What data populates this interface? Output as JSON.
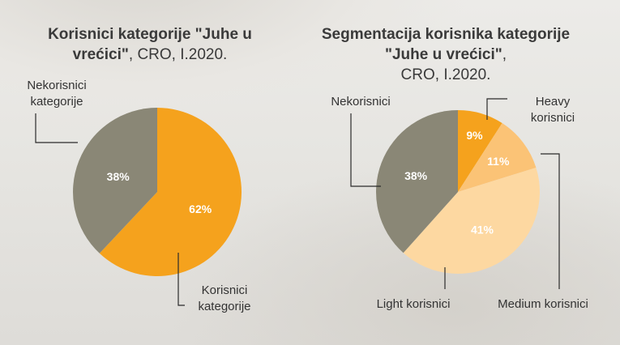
{
  "colors": {
    "nekorisnici": "#8a8776",
    "korisnici": "#f5a21d",
    "heavy": "#f5a21d",
    "medium": "#fbc376",
    "light": "#fdd8a1",
    "leader": "#2b2b2b"
  },
  "chart_data": [
    {
      "type": "pie",
      "title_bold": "Korisnici kategorije \"Juhe u vrećici\"",
      "title_rest": ", CRO, I.2020.",
      "slices": [
        {
          "name": "Korisnici kategorije",
          "label_line1": "Korisnici",
          "label_line2": "kategorije",
          "value": 62,
          "display": "62%"
        },
        {
          "name": "Nekorisnici kategorije",
          "label_line1": "Nekorisnici",
          "label_line2": "kategorije",
          "value": 38,
          "display": "38%"
        }
      ]
    },
    {
      "type": "pie",
      "title_bold": "Segmentacija korisnika kategorije \"Juhe u vrećici\"",
      "title_rest": "CRO, I.2020.",
      "slices": [
        {
          "name": "Heavy korisnici",
          "label_line1": "Heavy",
          "label_line2": "korisnici",
          "value": 9,
          "display": "9%"
        },
        {
          "name": "Medium korisnici",
          "label": "Medium korisnici",
          "value": 11,
          "display": "11%"
        },
        {
          "name": "Light korisnici",
          "label": "Light korisnici",
          "value": 41,
          "display": "41%"
        },
        {
          "name": "Nekorisnici",
          "label": "Nekorisnici",
          "value": 38,
          "display": "38%"
        }
      ]
    }
  ]
}
